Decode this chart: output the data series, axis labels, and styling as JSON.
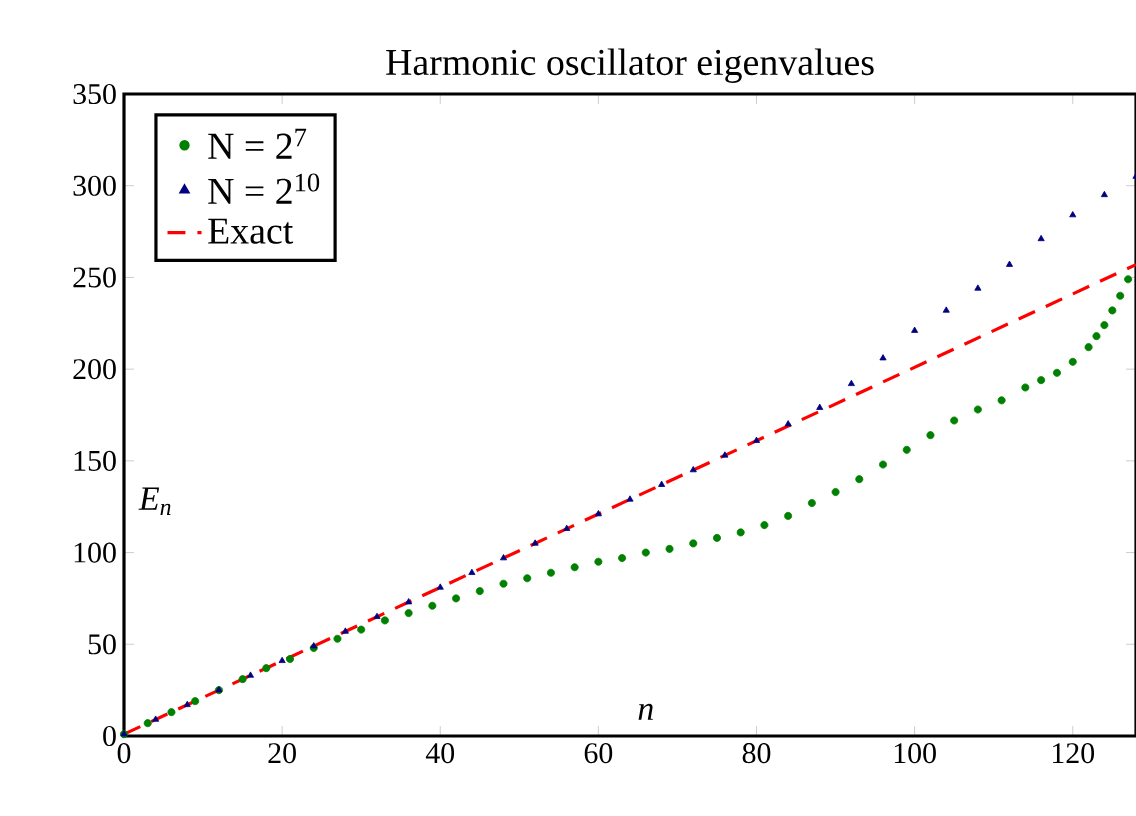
{
  "chart_data": {
    "type": "line",
    "title": "Harmonic oscillator eigenvalues",
    "xlabel": "n",
    "ylabel": "E$_{n}$",
    "xlim": [
      0,
      128
    ],
    "ylim": [
      0,
      350
    ],
    "xticks": [
      0,
      20,
      40,
      60,
      80,
      100,
      120
    ],
    "yticks": [
      0,
      50,
      100,
      150,
      200,
      250,
      300,
      350
    ],
    "legend": "top left",
    "grid": false,
    "series": [
      {
        "name": "N = 2$^{7}$",
        "type": "scatter",
        "marker": "circle",
        "color": "#008000",
        "x": [
          0,
          3,
          6,
          9,
          12,
          15,
          18,
          21,
          24,
          27,
          30,
          33,
          36,
          39,
          42,
          45,
          48,
          51,
          54,
          57,
          60,
          63,
          66,
          69,
          72,
          75,
          78,
          81,
          84,
          87,
          90,
          93,
          96,
          99,
          102,
          105,
          108,
          111,
          114,
          116,
          118,
          120,
          122,
          123,
          124,
          125,
          126,
          127
        ],
        "values": [
          1,
          7,
          13,
          19,
          25,
          31,
          37,
          42,
          48,
          53,
          58,
          63,
          67,
          71,
          75,
          79,
          83,
          86,
          89,
          92,
          95,
          97,
          100,
          102,
          105,
          108,
          111,
          115,
          120,
          127,
          133,
          140,
          148,
          156,
          164,
          172,
          178,
          183,
          190,
          194,
          198,
          204,
          212,
          218,
          224,
          232,
          240,
          249
        ]
      },
      {
        "name": "N = 2$^{10}$",
        "type": "scatter",
        "marker": "triangle",
        "color": "#000080",
        "x": [
          0,
          4,
          8,
          12,
          16,
          20,
          24,
          28,
          32,
          36,
          40,
          44,
          48,
          52,
          56,
          60,
          64,
          68,
          72,
          76,
          80,
          84,
          88,
          92,
          96,
          100,
          104,
          108,
          112,
          116,
          120,
          124,
          128
        ],
        "values": [
          1,
          9,
          17,
          25,
          33,
          41,
          49,
          57,
          65,
          73,
          81,
          89,
          97,
          105,
          113,
          121,
          129,
          137,
          145,
          153,
          161,
          170,
          179,
          192,
          206,
          221,
          232,
          244,
          257,
          271,
          284,
          295,
          305
        ]
      },
      {
        "name": "Exact",
        "line_style": "dashed",
        "color": "#ff0000",
        "x": [
          0,
          128
        ],
        "values": [
          1,
          257
        ]
      }
    ]
  }
}
